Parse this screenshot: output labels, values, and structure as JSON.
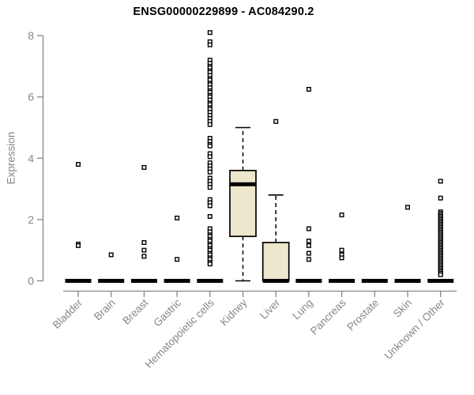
{
  "title": "ENSG00000229899 - AC084290.2",
  "colors": {
    "box_fill": "#ece7cd",
    "box_stroke": "#000000",
    "median": "#000000",
    "whisker": "#000000",
    "outlier_fill": "#ffffff",
    "outlier_stroke": "#000000",
    "axis": "#878787",
    "title": "#000000",
    "background": "#ffffff"
  },
  "chart_data": {
    "type": "boxplot",
    "title": "ENSG00000229899 - AC084290.2",
    "xlabel": "",
    "ylabel": "Expression",
    "ylim": [
      0,
      8
    ],
    "yticks": [
      0,
      2,
      4,
      6,
      8
    ],
    "grid": false,
    "legend": "none",
    "categories": [
      "Bladder",
      "Brain",
      "Breast",
      "Gastric",
      "Hematopoietic cells",
      "Kidney",
      "Liver",
      "Lung",
      "Pancreas",
      "Prostate",
      "Skin",
      "Unknown / Other"
    ],
    "series": [
      {
        "category": "Bladder",
        "whisker_low": 0,
        "q1": 0,
        "median": 0,
        "q3": 0,
        "whisker_high": 0,
        "outliers": [
          3.8,
          1.2,
          1.15
        ]
      },
      {
        "category": "Brain",
        "whisker_low": 0,
        "q1": 0,
        "median": 0,
        "q3": 0,
        "whisker_high": 0,
        "outliers": [
          0.85
        ]
      },
      {
        "category": "Breast",
        "whisker_low": 0,
        "q1": 0,
        "median": 0,
        "q3": 0,
        "whisker_high": 0,
        "outliers": [
          3.7,
          1.25,
          1.0,
          0.8
        ]
      },
      {
        "category": "Gastric",
        "whisker_low": 0,
        "q1": 0,
        "median": 0,
        "q3": 0,
        "whisker_high": 0,
        "outliers": [
          2.05,
          0.7
        ]
      },
      {
        "category": "Hematopoietic cells",
        "whisker_low": 0,
        "q1": 0,
        "median": 0,
        "q3": 0,
        "whisker_high": 0,
        "outliers": [
          8.1,
          7.8,
          7.7,
          7.2,
          7.1,
          7.0,
          6.95,
          6.85,
          6.8,
          6.7,
          6.6,
          6.55,
          6.45,
          6.4,
          6.3,
          6.2,
          6.15,
          6.05,
          6.0,
          5.9,
          5.8,
          5.75,
          5.65,
          5.6,
          5.5,
          5.4,
          5.3,
          5.2,
          5.1,
          4.65,
          4.55,
          4.45,
          4.4,
          4.15,
          4.05,
          3.85,
          3.75,
          3.65,
          3.55,
          3.35,
          3.25,
          3.15,
          3.05,
          2.65,
          2.55,
          2.45,
          2.1,
          1.7,
          1.6,
          1.5,
          1.45,
          1.35,
          1.3,
          1.2,
          1.15,
          1.05,
          1.0,
          0.9,
          0.85,
          0.75,
          0.7,
          0.6,
          0.55
        ]
      },
      {
        "category": "Kidney",
        "whisker_low": 0,
        "q1": 1.45,
        "median": 3.15,
        "q3": 3.6,
        "whisker_high": 5.0,
        "outliers": []
      },
      {
        "category": "Liver",
        "whisker_low": 0,
        "q1": 0,
        "median": 0,
        "q3": 1.25,
        "whisker_high": 2.8,
        "outliers": [
          5.2
        ]
      },
      {
        "category": "Lung",
        "whisker_low": 0,
        "q1": 0,
        "median": 0,
        "q3": 0,
        "whisker_high": 0,
        "outliers": [
          6.25,
          1.7,
          1.3,
          1.15,
          0.9,
          0.7
        ]
      },
      {
        "category": "Pancreas",
        "whisker_low": 0,
        "q1": 0,
        "median": 0,
        "q3": 0,
        "whisker_high": 0,
        "outliers": [
          2.15,
          1.0,
          0.85,
          0.75
        ]
      },
      {
        "category": "Prostate",
        "whisker_low": 0,
        "q1": 0,
        "median": 0,
        "q3": 0,
        "whisker_high": 0,
        "outliers": []
      },
      {
        "category": "Skin",
        "whisker_low": 0,
        "q1": 0,
        "median": 0,
        "q3": 0,
        "whisker_high": 0,
        "outliers": [
          2.4
        ]
      },
      {
        "category": "Unknown / Other",
        "whisker_low": 0,
        "q1": 0,
        "median": 0,
        "q3": 0,
        "whisker_high": 0,
        "outliers": [
          3.25,
          2.7,
          2.25,
          2.2,
          2.15,
          2.1,
          2.05,
          2.0,
          1.95,
          1.9,
          1.85,
          1.8,
          1.75,
          1.7,
          1.65,
          1.6,
          1.55,
          1.5,
          1.45,
          1.4,
          1.35,
          1.3,
          1.25,
          1.2,
          1.15,
          1.1,
          1.05,
          1.0,
          0.95,
          0.9,
          0.85,
          0.8,
          0.75,
          0.7,
          0.65,
          0.6,
          0.55,
          0.5,
          0.45,
          0.4,
          0.35,
          0.3,
          0.25,
          0.2
        ]
      }
    ]
  }
}
